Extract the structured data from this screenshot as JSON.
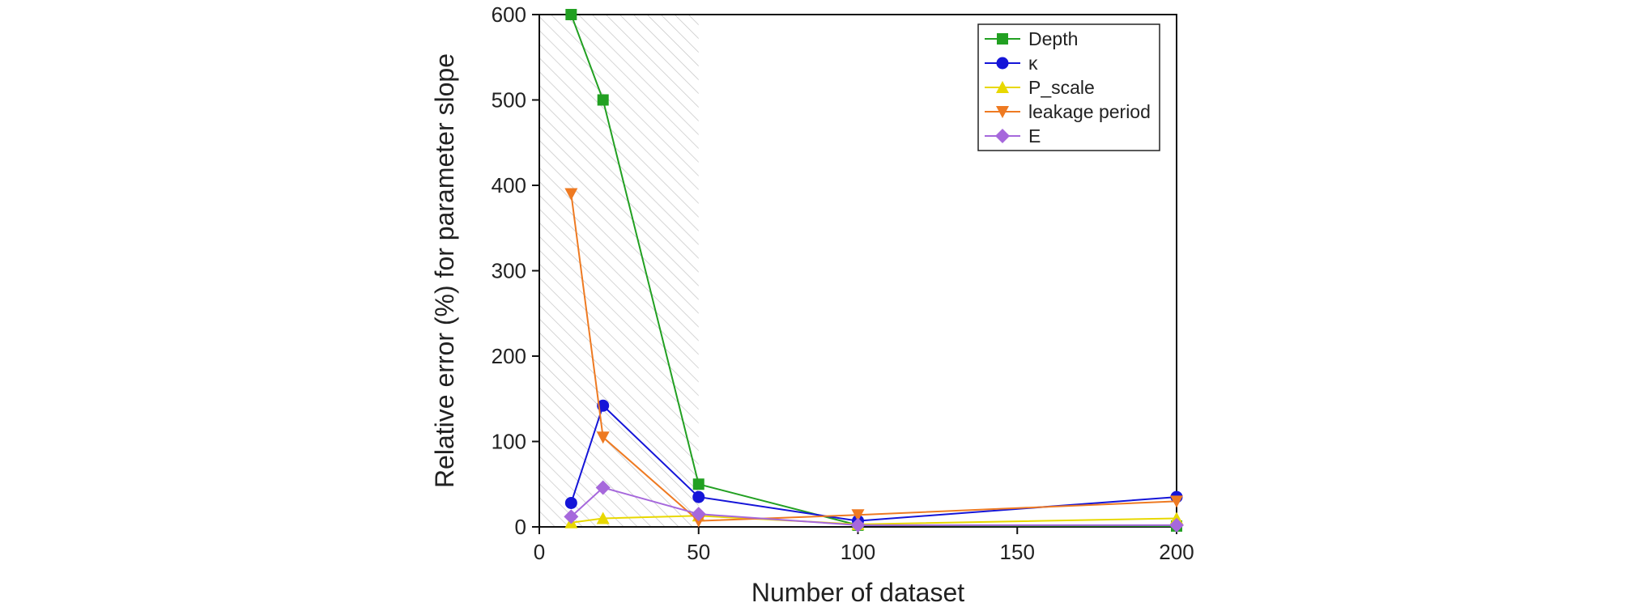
{
  "chart_data": {
    "type": "line",
    "title": "",
    "xlabel": "Number of dataset",
    "ylabel": "Relative error (%) for parameter slope",
    "xlim": [
      0,
      200
    ],
    "ylim": [
      0,
      600
    ],
    "xticks": [
      0,
      50,
      100,
      150,
      200
    ],
    "yticks": [
      0,
      100,
      200,
      300,
      400,
      500,
      600
    ],
    "grid": false,
    "legend_position": "top-right",
    "shaded_region_x": [
      0,
      50
    ],
    "x": [
      10,
      20,
      50,
      100,
      200
    ],
    "series": [
      {
        "name": "Depth",
        "color": "#22a022",
        "marker": "square",
        "values": [
          600,
          500,
          50,
          2,
          1
        ]
      },
      {
        "name": "κ",
        "color": "#1515d8",
        "marker": "circle",
        "values": [
          28,
          142,
          35,
          7,
          35
        ]
      },
      {
        "name": "P_scale",
        "color": "#e8d800",
        "marker": "triangle-up",
        "values": [
          5,
          10,
          13,
          3,
          10
        ]
      },
      {
        "name": "leakage period",
        "color": "#ee7a22",
        "marker": "triangle-down",
        "values": [
          390,
          105,
          7,
          14,
          30
        ]
      },
      {
        "name": "E",
        "color": "#a668dc",
        "marker": "diamond",
        "values": [
          12,
          46,
          15,
          2,
          2
        ]
      }
    ]
  }
}
